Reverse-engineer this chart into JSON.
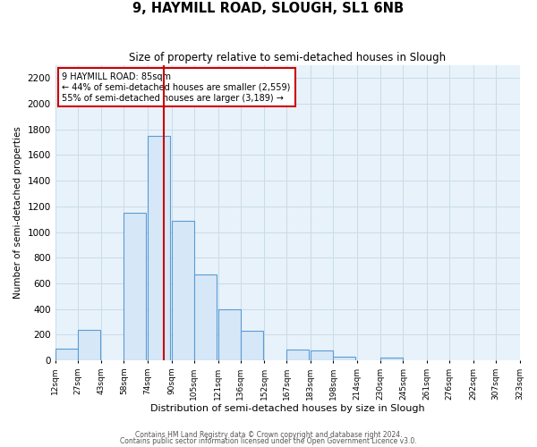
{
  "title": "9, HAYMILL ROAD, SLOUGH, SL1 6NB",
  "subtitle": "Size of property relative to semi-detached houses in Slough",
  "xlabel": "Distribution of semi-detached houses by size in Slough",
  "ylabel": "Number of semi-detached properties",
  "bar_left_edges": [
    12,
    27,
    43,
    58,
    74,
    90,
    105,
    121,
    136,
    152,
    167,
    183,
    198,
    214,
    230,
    245,
    261,
    276,
    292,
    307
  ],
  "bar_heights": [
    90,
    240,
    0,
    1150,
    1750,
    1090,
    670,
    400,
    230,
    0,
    85,
    75,
    30,
    0,
    20,
    0,
    0,
    0,
    0,
    0
  ],
  "bin_width": 15,
  "bar_facecolor": "#d6e8f7",
  "bar_edgecolor": "#5b9bd5",
  "vline_x": 85,
  "vline_color": "#cc0000",
  "annotation_title": "9 HAYMILL ROAD: 85sqm",
  "annotation_line1": "← 44% of semi-detached houses are smaller (2,559)",
  "annotation_line2": "55% of semi-detached houses are larger (3,189) →",
  "ylim": [
    0,
    2300
  ],
  "yticks": [
    0,
    200,
    400,
    600,
    800,
    1000,
    1200,
    1400,
    1600,
    1800,
    2000,
    2200
  ],
  "xtick_labels": [
    "12sqm",
    "27sqm",
    "43sqm",
    "58sqm",
    "74sqm",
    "90sqm",
    "105sqm",
    "121sqm",
    "136sqm",
    "152sqm",
    "167sqm",
    "183sqm",
    "198sqm",
    "214sqm",
    "230sqm",
    "245sqm",
    "261sqm",
    "276sqm",
    "292sqm",
    "307sqm",
    "323sqm"
  ],
  "xtick_positions": [
    12,
    27,
    43,
    58,
    74,
    90,
    105,
    121,
    136,
    152,
    167,
    183,
    198,
    214,
    230,
    245,
    261,
    276,
    292,
    307,
    323
  ],
  "grid_color": "#c8dcea",
  "bg_color": "#e8f2fa",
  "footer1": "Contains HM Land Registry data © Crown copyright and database right 2024.",
  "footer2": "Contains public sector information licensed under the Open Government Licence v3.0."
}
